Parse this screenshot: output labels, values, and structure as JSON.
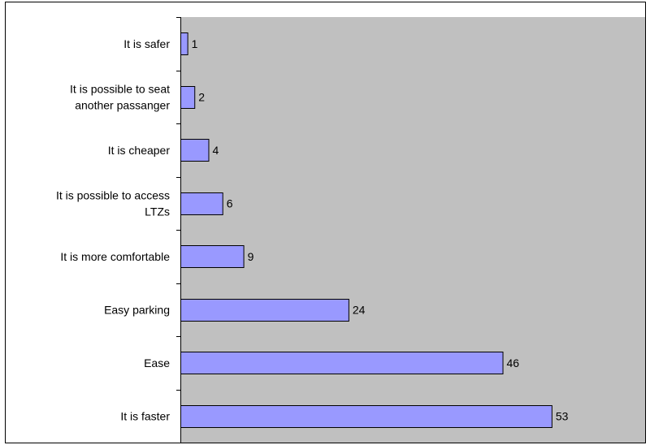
{
  "chart_data": {
    "type": "bar",
    "orientation": "horizontal",
    "title": "",
    "xlabel": "",
    "ylabel": "",
    "categories": [
      "It is safer",
      "It is possible to seat another passanger",
      "It is cheaper",
      "It is possible to access LTZs",
      "It is more comfortable",
      "Easy parking",
      "Ease",
      "It is faster"
    ],
    "category_lines": [
      [
        "It is safer"
      ],
      [
        "It is possible to seat",
        "another passanger"
      ],
      [
        "It is cheaper"
      ],
      [
        "It is possible to access",
        "LTZs"
      ],
      [
        "It is more comfortable"
      ],
      [
        "Easy parking"
      ],
      [
        "Ease"
      ],
      [
        "It is faster"
      ]
    ],
    "values": [
      1,
      2,
      4,
      6,
      9,
      24,
      46,
      53
    ],
    "xlim": [
      0,
      60
    ],
    "data_labels": true,
    "grid": false,
    "legend": "none",
    "colors": {
      "bar": "#9999ff",
      "plot_background": "#c0c0c0",
      "outline": "#000000"
    }
  }
}
